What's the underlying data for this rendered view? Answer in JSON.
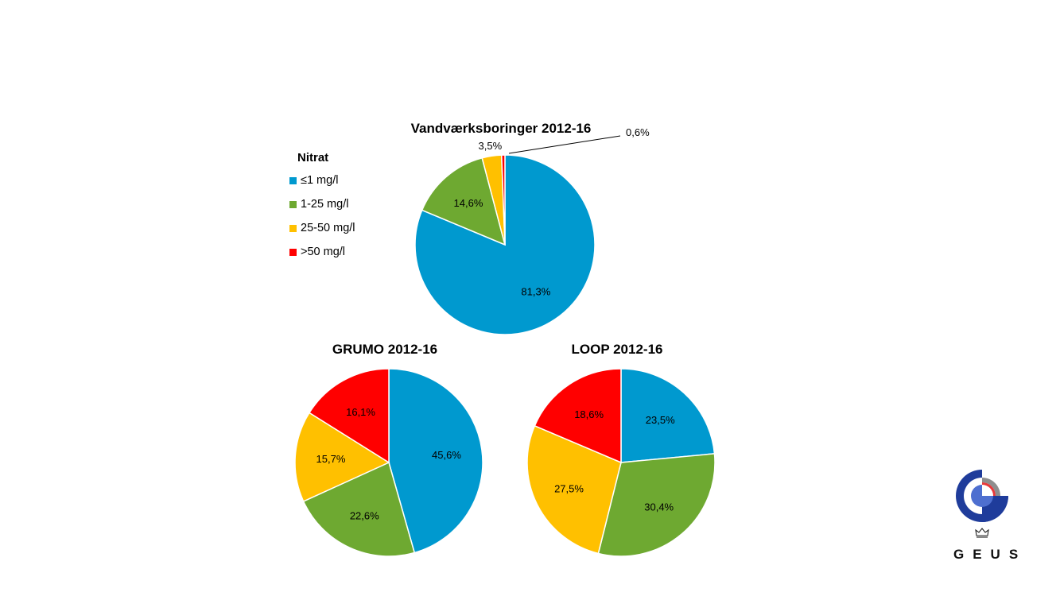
{
  "legend": {
    "title": "Nitrat",
    "items": [
      {
        "label": "≤1 mg/l",
        "color": "#0099CF"
      },
      {
        "label": "1-25 mg/l",
        "color": "#6EA931"
      },
      {
        "label": "25-50 mg/l",
        "color": "#FFC000"
      },
      {
        "label": ">50 mg/l",
        "color": "#FF0000"
      }
    ]
  },
  "logo": {
    "text": "GEUS",
    "icon": "geus-crown-logo-icon"
  },
  "chart_data": [
    {
      "type": "pie",
      "title": "Vandværksboringer 2012-16",
      "categories": [
        "≤1 mg/l",
        "1-25 mg/l",
        "25-50 mg/l",
        ">50 mg/l"
      ],
      "values": [
        81.3,
        14.6,
        3.5,
        0.6
      ],
      "labels": [
        "81,3%",
        "14,6%",
        "3,5%",
        "0,6%"
      ],
      "colors": [
        "#0099CF",
        "#6EA931",
        "#FFC000",
        "#FF0000"
      ],
      "start_angle_deg": 0,
      "direction": "clockwise"
    },
    {
      "type": "pie",
      "title": "GRUMO 2012-16",
      "categories": [
        "≤1 mg/l",
        "1-25 mg/l",
        "25-50 mg/l",
        ">50 mg/l"
      ],
      "values": [
        45.6,
        22.6,
        15.7,
        16.1
      ],
      "labels": [
        "45,6%",
        "22,6%",
        "15,7%",
        "16,1%"
      ],
      "colors": [
        "#0099CF",
        "#6EA931",
        "#FFC000",
        "#FF0000"
      ],
      "start_angle_deg": 0,
      "direction": "clockwise"
    },
    {
      "type": "pie",
      "title": "LOOP 2012-16",
      "categories": [
        "≤1 mg/l",
        "1-25 mg/l",
        "25-50 mg/l",
        ">50 mg/l"
      ],
      "values": [
        23.5,
        30.4,
        27.5,
        18.6
      ],
      "labels": [
        "23,5%",
        "30,4%",
        "27,5%",
        "18,6%"
      ],
      "colors": [
        "#0099CF",
        "#6EA931",
        "#FFC000",
        "#FF0000"
      ],
      "start_angle_deg": 0,
      "direction": "clockwise"
    }
  ]
}
